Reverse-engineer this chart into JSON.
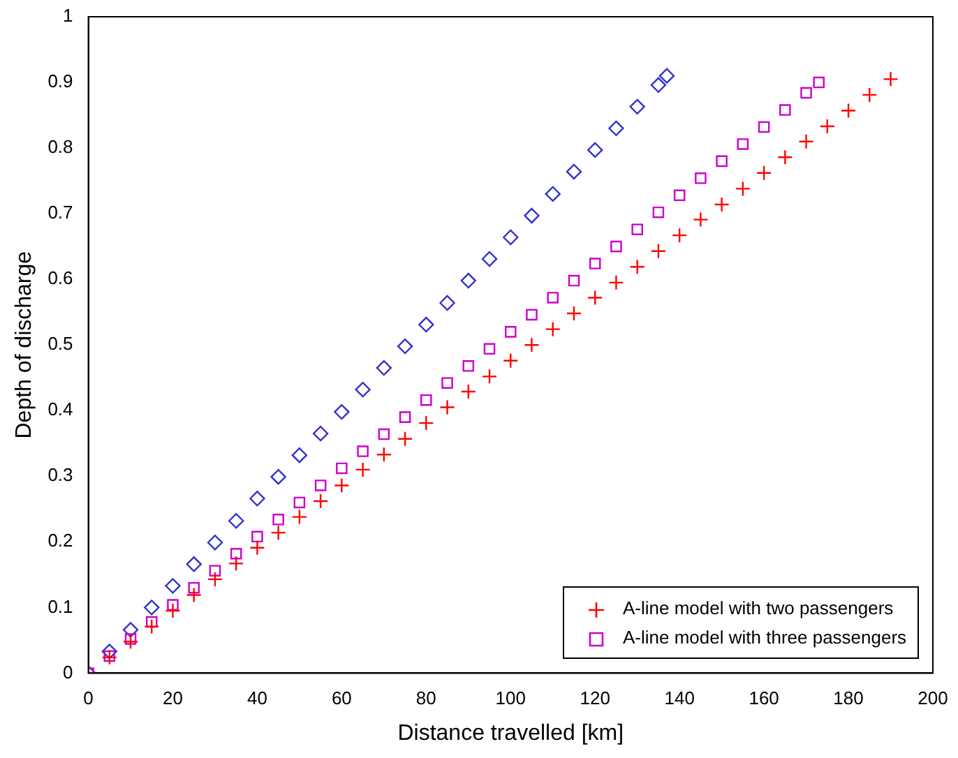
{
  "chart_data": {
    "type": "scatter",
    "xlabel": "Distance travelled [km]",
    "ylabel": "Depth of discharge",
    "xlim": [
      0,
      200
    ],
    "xticks": [
      0,
      20,
      40,
      60,
      80,
      100,
      120,
      140,
      160,
      180,
      200
    ],
    "ylim": [
      0,
      1
    ],
    "yticks": [
      0,
      0.1,
      0.2,
      0.3,
      0.4,
      0.5,
      0.6,
      0.7,
      0.8,
      0.9,
      1
    ],
    "grid": false,
    "legend": "bottom right",
    "series": [
      {
        "name": "A-line model with two passengers",
        "color": "#ff0000",
        "marker": "cross",
        "x": [
          0,
          5,
          10,
          15,
          20,
          25,
          30,
          35,
          40,
          45,
          50,
          55,
          60,
          65,
          70,
          75,
          80,
          85,
          90,
          95,
          100,
          105,
          110,
          115,
          120,
          125,
          130,
          135,
          140,
          145,
          150,
          155,
          160,
          165,
          170,
          175,
          180,
          185,
          190
        ],
        "values": [
          0,
          0.024,
          0.048,
          0.071,
          0.095,
          0.119,
          0.143,
          0.167,
          0.191,
          0.214,
          0.238,
          0.262,
          0.286,
          0.31,
          0.333,
          0.357,
          0.381,
          0.405,
          0.429,
          0.452,
          0.476,
          0.5,
          0.524,
          0.548,
          0.572,
          0.595,
          0.619,
          0.643,
          0.667,
          0.691,
          0.714,
          0.738,
          0.762,
          0.786,
          0.81,
          0.833,
          0.857,
          0.881,
          0.905
        ]
      },
      {
        "name": "A-line model with three passengers",
        "color": "#cc00cc",
        "marker": "square",
        "x": [
          0,
          5,
          10,
          15,
          20,
          25,
          30,
          35,
          40,
          45,
          50,
          55,
          60,
          65,
          70,
          75,
          80,
          85,
          90,
          95,
          100,
          105,
          110,
          115,
          120,
          125,
          130,
          135,
          140,
          145,
          150,
          155,
          160,
          165,
          170,
          173
        ],
        "values": [
          0,
          0.026,
          0.052,
          0.078,
          0.104,
          0.13,
          0.156,
          0.182,
          0.208,
          0.234,
          0.26,
          0.286,
          0.312,
          0.338,
          0.364,
          0.39,
          0.416,
          0.442,
          0.468,
          0.494,
          0.52,
          0.546,
          0.572,
          0.598,
          0.624,
          0.65,
          0.676,
          0.702,
          0.728,
          0.754,
          0.78,
          0.806,
          0.832,
          0.858,
          0.884,
          0.9
        ]
      },
      {
        "color": "#3333cc",
        "marker": "diamond",
        "x": [
          0,
          5,
          10,
          15,
          20,
          25,
          30,
          35,
          40,
          45,
          50,
          55,
          60,
          65,
          70,
          75,
          80,
          85,
          90,
          95,
          100,
          105,
          110,
          115,
          120,
          125,
          130,
          135,
          137
        ],
        "values": [
          0,
          0.033,
          0.066,
          0.1,
          0.133,
          0.166,
          0.199,
          0.232,
          0.266,
          0.299,
          0.332,
          0.365,
          0.398,
          0.432,
          0.465,
          0.498,
          0.531,
          0.564,
          0.598,
          0.631,
          0.664,
          0.697,
          0.73,
          0.764,
          0.797,
          0.83,
          0.863,
          0.896,
          0.91
        ]
      }
    ]
  }
}
